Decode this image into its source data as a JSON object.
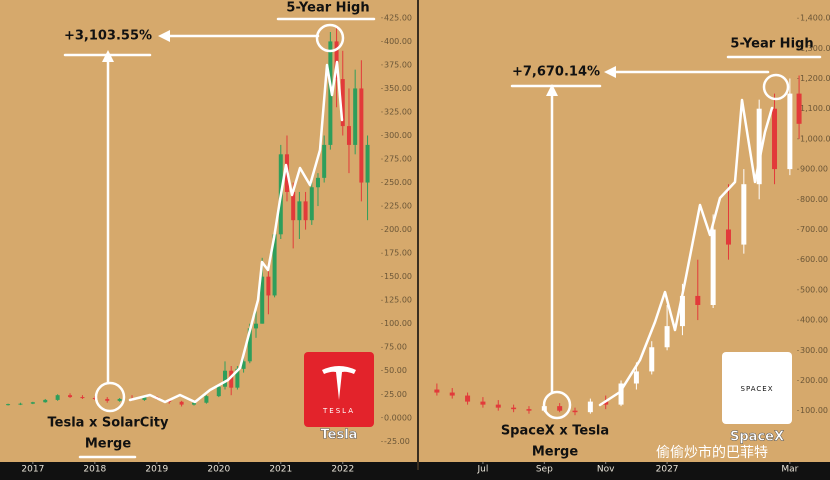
{
  "chart_data": [
    {
      "type": "candlestick",
      "x": [
        2016.6,
        2016.8,
        2017.0,
        2017.2,
        2017.4,
        2017.6,
        2017.8,
        2018.0,
        2018.2,
        2018.4,
        2018.6,
        2018.8,
        2019.0,
        2019.2,
        2019.4,
        2019.6,
        2019.8,
        2020.0,
        2020.1,
        2020.2,
        2020.3,
        2020.4,
        2020.5,
        2020.6,
        2020.7,
        2020.8,
        2020.9,
        2021.0,
        2021.1,
        2021.2,
        2021.3,
        2021.4,
        2021.5,
        2021.6,
        2021.7,
        2021.8,
        2021.9,
        2022.0,
        2022.1,
        2022.2,
        2022.3,
        2022.4
      ],
      "open": [
        14,
        14.5,
        15,
        16.5,
        19,
        24,
        22,
        21,
        20,
        18,
        20,
        19,
        22,
        19,
        17,
        14,
        16,
        23,
        33,
        50,
        32,
        52,
        60,
        95,
        100,
        150,
        130,
        195,
        280,
        240,
        210,
        230,
        210,
        245,
        255,
        290,
        400,
        360,
        310,
        290,
        350,
        250
      ],
      "high": [
        15,
        16,
        17,
        20,
        25,
        26,
        24,
        23,
        22,
        21,
        24,
        23,
        23,
        20,
        18,
        17,
        24,
        35,
        60,
        55,
        55,
        65,
        100,
        120,
        170,
        165,
        200,
        290,
        300,
        250,
        240,
        240,
        250,
        260,
        300,
        410,
        415,
        390,
        350,
        370,
        380,
        300
      ],
      "low": [
        13,
        13.5,
        14.5,
        16,
        18,
        21,
        20,
        19,
        16,
        17,
        18,
        18,
        19,
        15,
        12,
        13,
        15,
        22,
        30,
        24,
        30,
        48,
        58,
        85,
        100,
        110,
        128,
        190,
        230,
        180,
        190,
        200,
        205,
        225,
        250,
        285,
        330,
        300,
        260,
        280,
        230,
        210
      ],
      "close": [
        14.5,
        15,
        16.5,
        19,
        24,
        22,
        21,
        20,
        18,
        20,
        19,
        22,
        20,
        17,
        14,
        16,
        23,
        33,
        50,
        32,
        52,
        60,
        95,
        100,
        150,
        130,
        195,
        280,
        240,
        210,
        230,
        210,
        245,
        255,
        290,
        400,
        360,
        310,
        290,
        350,
        250,
        290
      ],
      "up_color": "#2e9e5b",
      "down_color": "#e23a3a",
      "xlim": [
        2016.47,
        2022.52
      ],
      "xticks": [
        2017,
        2018,
        2019,
        2020,
        2021,
        2022
      ],
      "ylim": [
        -47,
        444
      ],
      "yticks": [
        {
          "value": 425,
          "label": "425.00"
        },
        {
          "value": 400,
          "label": "400.00"
        },
        {
          "value": 375,
          "label": "375.00"
        },
        {
          "value": 350,
          "label": "350.00"
        },
        {
          "value": 325,
          "label": "325.00"
        },
        {
          "value": 300,
          "label": "300.00"
        },
        {
          "value": 275,
          "label": "275.00"
        },
        {
          "value": 250,
          "label": "250.00"
        },
        {
          "value": 225,
          "label": "225.00"
        },
        {
          "value": 200,
          "label": "200.00"
        },
        {
          "value": 175,
          "label": "175.00"
        },
        {
          "value": 150,
          "label": "150.00"
        },
        {
          "value": 125,
          "label": "125.00"
        },
        {
          "value": 100,
          "label": "100.00"
        },
        {
          "value": 75,
          "label": "75.00"
        },
        {
          "value": 50,
          "label": "50.00"
        },
        {
          "value": 25,
          "label": "25.00"
        },
        {
          "value": 0,
          "label": "0.0000"
        },
        {
          "value": -25,
          "label": "-25.00"
        }
      ],
      "annotations": {
        "gain": "+3,103.55%",
        "high": "5-Year High",
        "event": "Tesla x SolarCity",
        "event2": "Merge",
        "logo": "TESLA",
        "name": "Tesla"
      }
    },
    {
      "type": "candlestick",
      "x": [
        -1.5,
        -1.0,
        -0.5,
        0,
        0.5,
        1.0,
        1.5,
        2.0,
        2.5,
        3.0,
        3.5,
        4.0,
        4.5,
        5.0,
        5.5,
        6.0,
        6.5,
        7.0,
        7.5,
        8.0,
        8.5,
        9.0,
        9.5,
        10.0,
        10.3
      ],
      "open": [
        170,
        160,
        150,
        130,
        120,
        110,
        105,
        100,
        115,
        100,
        95,
        130,
        120,
        190,
        230,
        310,
        380,
        480,
        450,
        700,
        650,
        850,
        1100,
        900,
        1150
      ],
      "high": [
        190,
        175,
        160,
        145,
        135,
        120,
        115,
        120,
        125,
        110,
        140,
        150,
        200,
        260,
        330,
        450,
        520,
        600,
        750,
        850,
        900,
        1130,
        1150,
        1200,
        1210
      ],
      "low": [
        150,
        140,
        120,
        110,
        100,
        95,
        90,
        95,
        95,
        85,
        90,
        105,
        115,
        170,
        220,
        300,
        350,
        400,
        440,
        600,
        620,
        800,
        850,
        880,
        1000
      ],
      "close": [
        160,
        150,
        130,
        120,
        110,
        105,
        100,
        115,
        100,
        95,
        130,
        120,
        190,
        230,
        310,
        380,
        480,
        450,
        700,
        650,
        850,
        1100,
        900,
        1150,
        1050
      ],
      "up_color": "#ffffff",
      "down_color": "#e23a3a",
      "xlim": [
        -2.05,
        10.33
      ],
      "xticks": [
        {
          "value": 0,
          "label": "Jul"
        },
        {
          "value": 2,
          "label": "Sep"
        },
        {
          "value": 4,
          "label": "Nov"
        },
        {
          "value": 6,
          "label": "2027"
        },
        {
          "value": 10,
          "label": "Mar"
        }
      ],
      "ylim": [
        -70,
        1460
      ],
      "yticks": [
        {
          "value": 1400,
          "label": "1,400.00"
        },
        {
          "value": 1300,
          "label": "1,300.00"
        },
        {
          "value": 1200,
          "label": "1,200.00"
        },
        {
          "value": 1100,
          "label": "1,100.00"
        },
        {
          "value": 1000,
          "label": "1,000.00"
        },
        {
          "value": 900,
          "label": "900.00"
        },
        {
          "value": 800,
          "label": "800.00"
        },
        {
          "value": 700,
          "label": "700.00"
        },
        {
          "value": 600,
          "label": "600.00"
        },
        {
          "value": 500,
          "label": "500.00"
        },
        {
          "value": 400,
          "label": "400.00"
        },
        {
          "value": 300,
          "label": "300.00"
        },
        {
          "value": 200,
          "label": "200.00"
        },
        {
          "value": 100,
          "label": "100.00"
        }
      ],
      "annotations": {
        "gain": "+7,670.14%",
        "high": "5-Year High",
        "event": "SpaceX x Tesla",
        "event2": "Merge",
        "logo": "SPACEX",
        "name": "SpaceX"
      }
    }
  ],
  "watermark": "偷偷炒市的巴菲特"
}
